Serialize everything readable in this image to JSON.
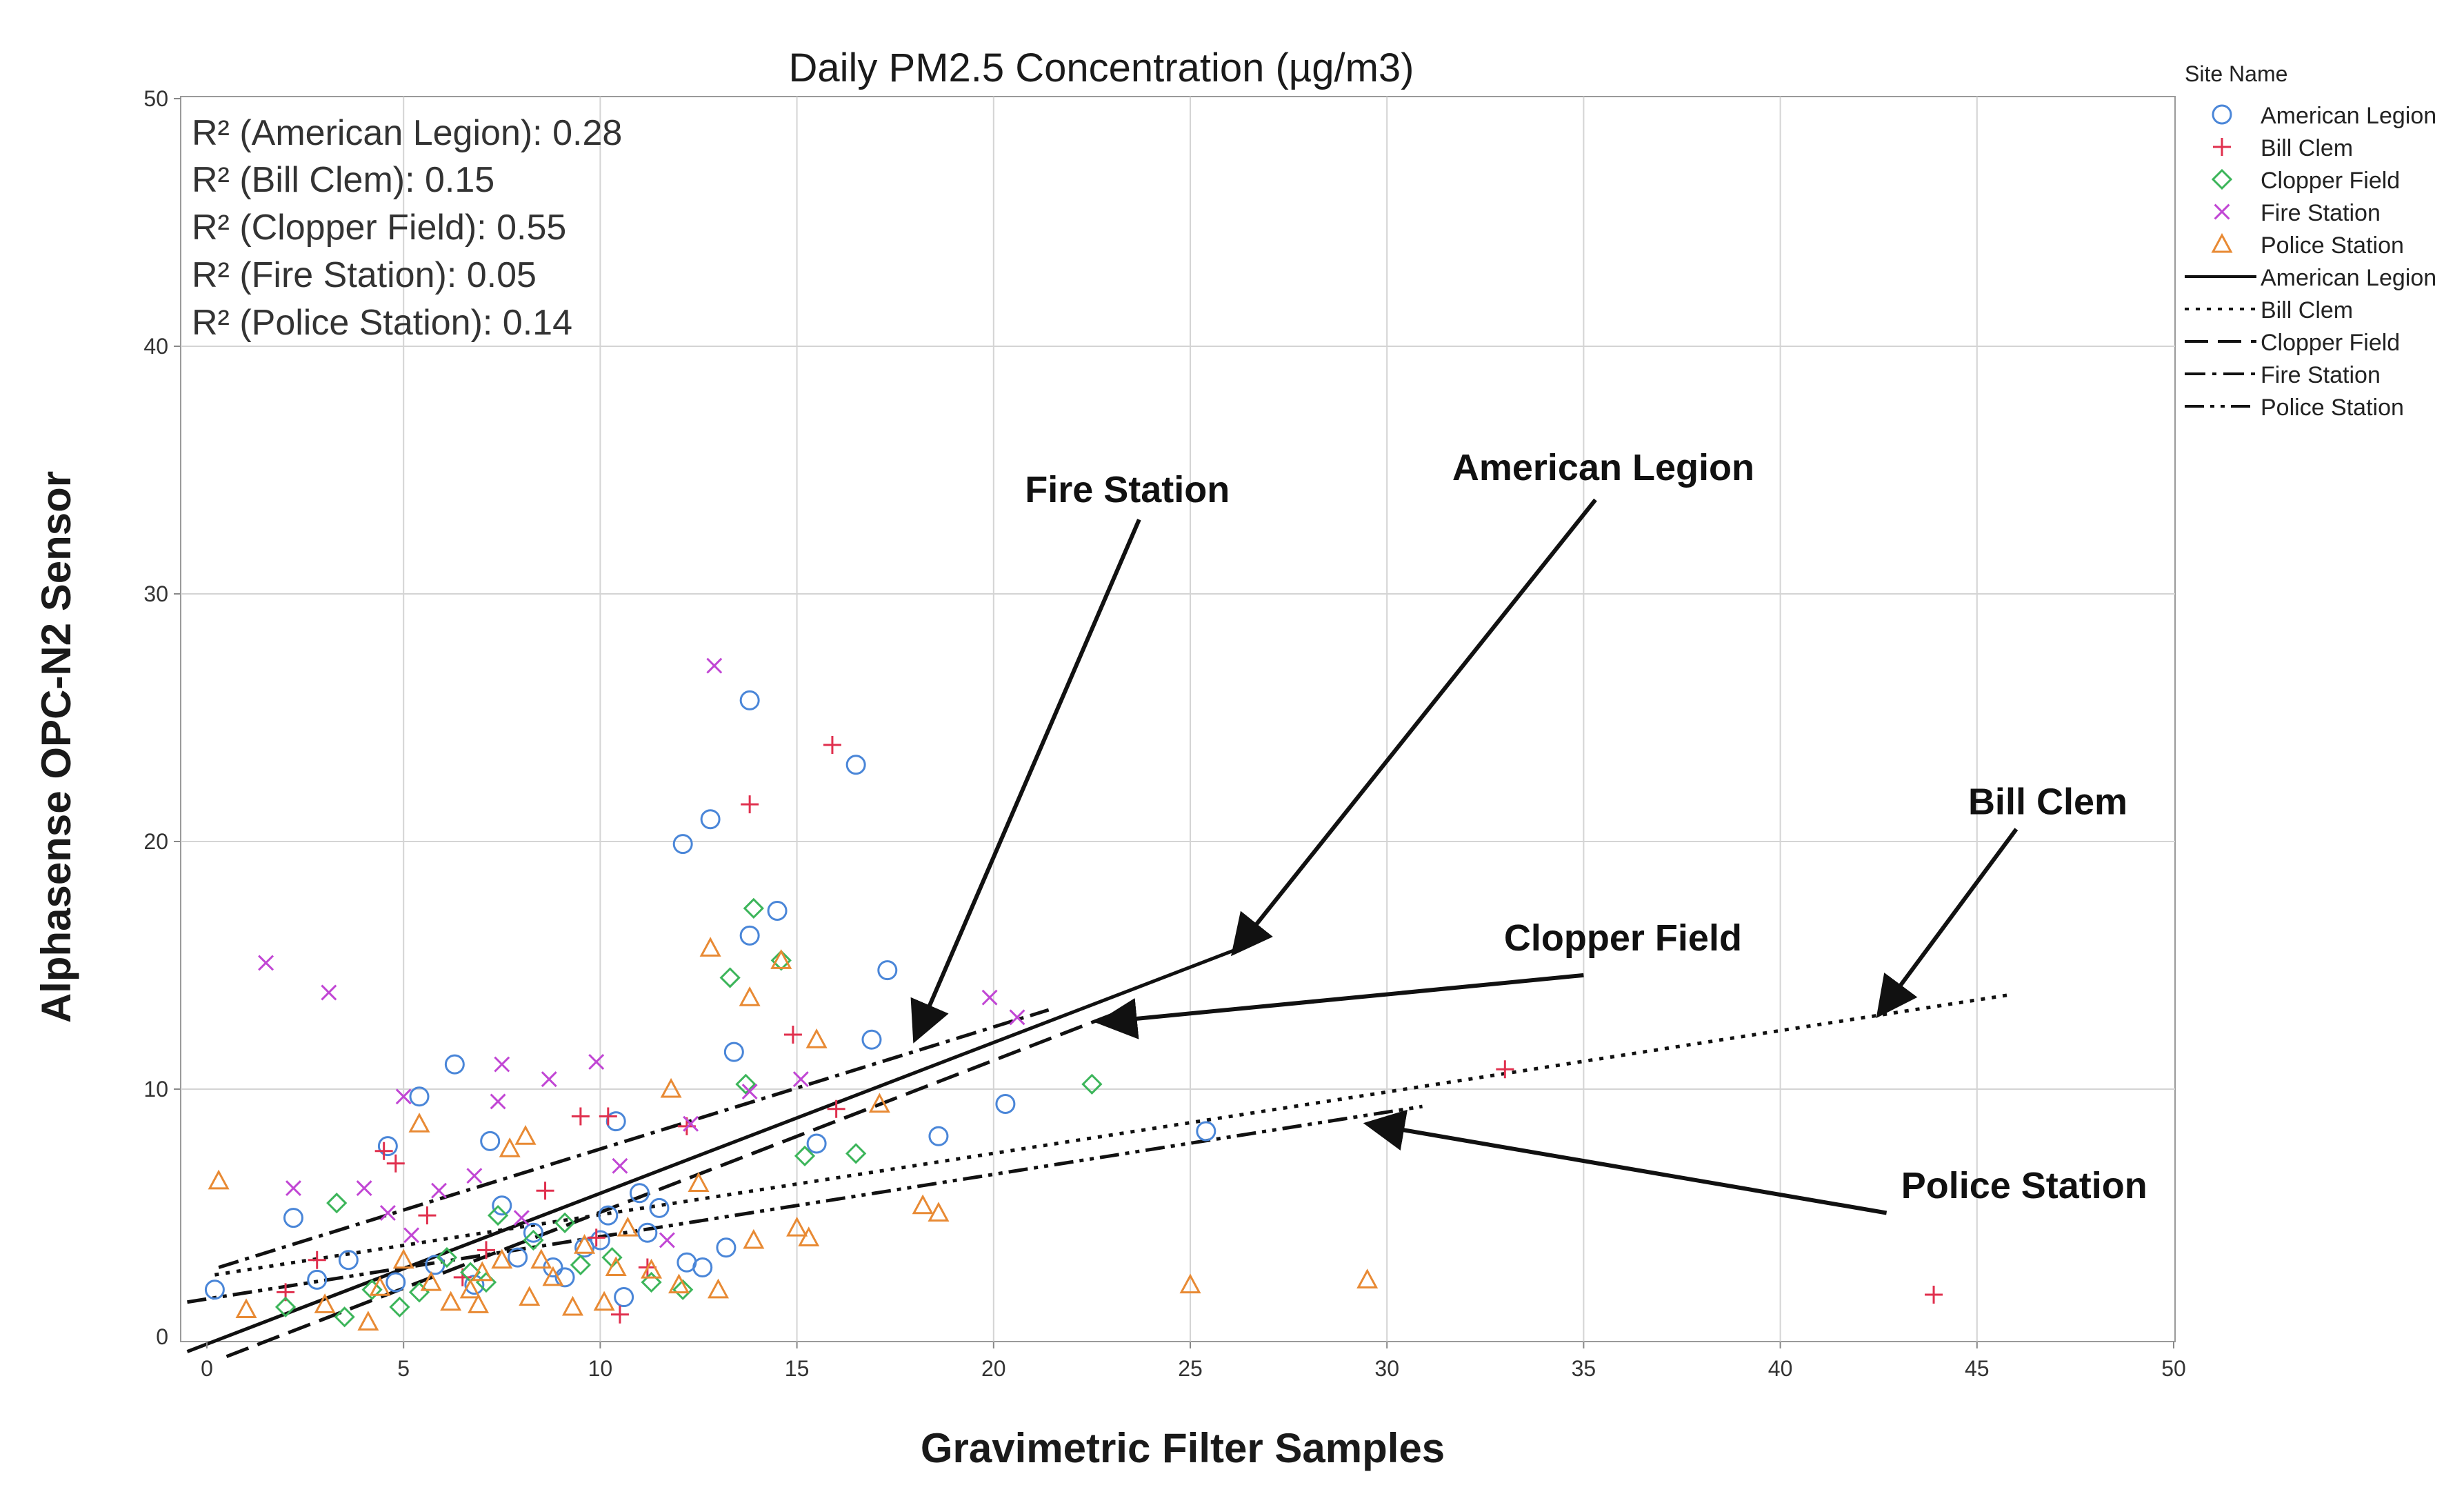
{
  "chart_data": {
    "type": "scatter",
    "title": "Daily PM2.5 Concentration (µg/m3)",
    "xlabel": "Gravimetric Filter Samples",
    "ylabel": "Alphasense OPC-N2 Sensor",
    "xlim": [
      0,
      50
    ],
    "ylim": [
      0,
      50
    ],
    "xticks": [
      "0",
      "5",
      "10",
      "15",
      "20",
      "25",
      "30",
      "35",
      "40",
      "45",
      "50"
    ],
    "yticks": [
      "10",
      "20",
      "30",
      "40",
      "50"
    ],
    "grid": true,
    "legend_title": "Site Name",
    "legend_position": "top-right",
    "r2_annotations": [
      "R² (American Legion): 0.28",
      "R² (Bill Clem): 0.15",
      "R² (Clopper Field): 0.55",
      "R² (Fire Station): 0.05",
      "R² (Police Station): 0.14"
    ],
    "series": [
      {
        "name": "American Legion",
        "marker": "circle",
        "color": "#4a86d8",
        "points": [
          [
            0.2,
            1.9
          ],
          [
            2.2,
            4.8
          ],
          [
            4.6,
            7.7
          ],
          [
            5.4,
            9.7
          ],
          [
            6.3,
            11.0
          ],
          [
            7.2,
            7.9
          ],
          [
            7.5,
            5.3
          ],
          [
            8.3,
            4.2
          ],
          [
            8.8,
            2.8
          ],
          [
            9.6,
            3.6
          ],
          [
            10.2,
            4.9
          ],
          [
            10.4,
            8.7
          ],
          [
            10.6,
            1.6
          ],
          [
            11.5,
            5.2
          ],
          [
            12.1,
            19.9
          ],
          [
            12.6,
            2.8
          ],
          [
            12.8,
            20.9
          ],
          [
            13.4,
            11.5
          ],
          [
            13.8,
            16.2
          ],
          [
            13.8,
            25.7
          ],
          [
            14.5,
            17.2
          ],
          [
            15.5,
            7.8
          ],
          [
            16.5,
            23.1
          ],
          [
            16.9,
            12.0
          ],
          [
            17.3,
            14.8
          ],
          [
            18.6,
            8.1
          ],
          [
            20.3,
            9.4
          ],
          [
            25.4,
            8.3
          ],
          [
            4.8,
            2.2
          ],
          [
            5.8,
            2.9
          ],
          [
            6.8,
            2.1
          ],
          [
            7.9,
            3.2
          ],
          [
            9.1,
            2.4
          ],
          [
            10.0,
            3.9
          ],
          [
            11.2,
            4.2
          ],
          [
            12.2,
            3.0
          ],
          [
            2.8,
            2.3
          ],
          [
            3.6,
            3.1
          ],
          [
            11.0,
            5.8
          ],
          [
            13.2,
            3.6
          ]
        ]
      },
      {
        "name": "Bill Clem",
        "marker": "plus",
        "color": "#e0304e",
        "points": [
          [
            2.0,
            1.8
          ],
          [
            2.8,
            3.1
          ],
          [
            4.5,
            7.5
          ],
          [
            4.8,
            7.0
          ],
          [
            5.6,
            4.9
          ],
          [
            7.1,
            3.5
          ],
          [
            8.6,
            5.9
          ],
          [
            9.5,
            8.9
          ],
          [
            10.2,
            8.9
          ],
          [
            10.5,
            0.9
          ],
          [
            11.2,
            2.8
          ],
          [
            12.2,
            8.5
          ],
          [
            13.8,
            21.5
          ],
          [
            14.9,
            12.2
          ],
          [
            15.9,
            23.9
          ],
          [
            16.0,
            9.2
          ],
          [
            33.0,
            10.8
          ],
          [
            43.9,
            1.7
          ],
          [
            6.5,
            2.4
          ],
          [
            9.9,
            4.0
          ]
        ]
      },
      {
        "name": "Clopper Field",
        "marker": "diamond",
        "color": "#3cb55a",
        "points": [
          [
            2.0,
            1.2
          ],
          [
            3.3,
            5.4
          ],
          [
            3.5,
            0.8
          ],
          [
            4.2,
            1.9
          ],
          [
            5.4,
            1.8
          ],
          [
            6.1,
            3.2
          ],
          [
            7.1,
            2.2
          ],
          [
            7.4,
            4.9
          ],
          [
            8.3,
            3.9
          ],
          [
            9.1,
            4.6
          ],
          [
            9.5,
            2.9
          ],
          [
            10.3,
            3.2
          ],
          [
            11.3,
            2.2
          ],
          [
            12.1,
            1.9
          ],
          [
            13.3,
            14.5
          ],
          [
            13.9,
            17.3
          ],
          [
            13.7,
            10.2
          ],
          [
            14.6,
            15.2
          ],
          [
            15.2,
            7.3
          ],
          [
            16.5,
            7.4
          ],
          [
            22.5,
            10.2
          ],
          [
            4.9,
            1.2
          ],
          [
            6.7,
            2.6
          ]
        ]
      },
      {
        "name": "Fire Station",
        "marker": "x",
        "color": "#c146d4",
        "points": [
          [
            1.5,
            15.1
          ],
          [
            2.2,
            6.0
          ],
          [
            3.1,
            13.9
          ],
          [
            4.0,
            6.0
          ],
          [
            4.6,
            5.0
          ],
          [
            5.0,
            9.7
          ],
          [
            5.9,
            5.9
          ],
          [
            6.8,
            6.5
          ],
          [
            7.5,
            11.0
          ],
          [
            7.4,
            9.5
          ],
          [
            8.7,
            10.4
          ],
          [
            9.9,
            11.1
          ],
          [
            10.5,
            6.9
          ],
          [
            12.3,
            8.6
          ],
          [
            12.9,
            27.1
          ],
          [
            13.8,
            9.9
          ],
          [
            15.1,
            10.4
          ],
          [
            19.9,
            13.7
          ],
          [
            20.6,
            12.9
          ],
          [
            5.2,
            4.1
          ],
          [
            8.0,
            4.8
          ],
          [
            11.7,
            3.9
          ]
        ]
      },
      {
        "name": "Police Station",
        "marker": "triangle",
        "color": "#e88a34",
        "points": [
          [
            0.3,
            6.3
          ],
          [
            1.0,
            1.1
          ],
          [
            3.0,
            1.3
          ],
          [
            4.1,
            0.6
          ],
          [
            4.4,
            2.0
          ],
          [
            5.0,
            3.1
          ],
          [
            5.4,
            8.6
          ],
          [
            6.2,
            1.4
          ],
          [
            6.7,
            1.9
          ],
          [
            7.5,
            3.1
          ],
          [
            7.7,
            7.6
          ],
          [
            8.1,
            8.1
          ],
          [
            8.2,
            1.6
          ],
          [
            8.8,
            2.4
          ],
          [
            9.3,
            1.2
          ],
          [
            10.1,
            1.4
          ],
          [
            10.4,
            2.8
          ],
          [
            11.8,
            10.0
          ],
          [
            12.0,
            2.1
          ],
          [
            12.8,
            15.7
          ],
          [
            13.0,
            1.9
          ],
          [
            13.8,
            13.7
          ],
          [
            13.9,
            3.9
          ],
          [
            14.6,
            15.2
          ],
          [
            15.0,
            4.4
          ],
          [
            15.3,
            4.0
          ],
          [
            15.5,
            12.0
          ],
          [
            17.1,
            9.4
          ],
          [
            18.2,
            5.3
          ],
          [
            18.6,
            5.0
          ],
          [
            25.0,
            2.1
          ],
          [
            29.5,
            2.3
          ],
          [
            5.7,
            2.2
          ],
          [
            6.9,
            1.3
          ],
          [
            9.6,
            3.7
          ],
          [
            11.3,
            2.7
          ],
          [
            12.5,
            6.2
          ],
          [
            10.7,
            4.4
          ],
          [
            8.5,
            3.1
          ],
          [
            7.0,
            2.6
          ]
        ]
      }
    ],
    "fits": [
      {
        "name": "American Legion",
        "style": "solid",
        "x": [
          -0.5,
          26.6
        ],
        "y": [
          -0.6,
          15.9
        ]
      },
      {
        "name": "Bill Clem",
        "style": "dot",
        "x": [
          0.2,
          45.8
        ],
        "y": [
          2.5,
          13.8
        ]
      },
      {
        "name": "Clopper Field",
        "style": "dash",
        "x": [
          0.5,
          23.0
        ],
        "y": [
          -0.8,
          13.0
        ]
      },
      {
        "name": "Fire Station",
        "style": "dashdot",
        "x": [
          0.3,
          21.4
        ],
        "y": [
          2.8,
          13.2
        ]
      },
      {
        "name": "Police Station",
        "style": "dashdotdot",
        "x": [
          -0.5,
          30.9
        ],
        "y": [
          1.4,
          9.3
        ]
      }
    ],
    "callouts": [
      {
        "label": "Fire Station",
        "text_at": [
          23.4,
          33.7
        ],
        "arrow_from": [
          23.7,
          33.0
        ],
        "arrow_to": [
          18.0,
          12.0
        ]
      },
      {
        "label": "American Legion",
        "text_at": [
          35.5,
          34.6
        ],
        "arrow_from": [
          35.3,
          33.8
        ],
        "arrow_to": [
          26.1,
          15.5
        ]
      },
      {
        "label": "Bill Clem",
        "text_at": [
          46.8,
          21.1
        ],
        "arrow_from": [
          46.0,
          20.5
        ],
        "arrow_to": [
          42.5,
          13.0
        ]
      },
      {
        "label": "Clopper Field",
        "text_at": [
          36.0,
          15.6
        ],
        "arrow_from": [
          35.0,
          14.6
        ],
        "arrow_to": [
          22.7,
          12.7
        ]
      },
      {
        "label": "Police Station",
        "text_at": [
          46.2,
          5.6
        ],
        "arrow_from": [
          42.7,
          5.0
        ],
        "arrow_to": [
          29.5,
          8.6
        ]
      }
    ]
  }
}
